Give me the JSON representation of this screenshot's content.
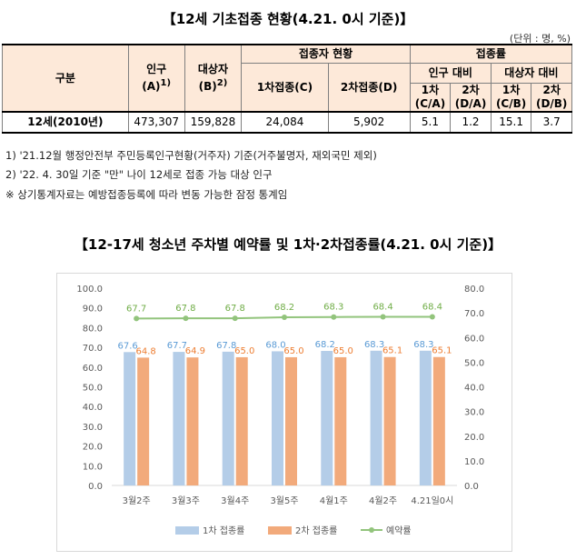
{
  "table": {
    "title": "【12세 기초접종 현황(4.21. 0시 기준)】",
    "unit": "(단위 : 명, %)",
    "headers": {
      "category": "구분",
      "population": "인구",
      "population_sub": "(A)",
      "population_sup": "1)",
      "target": "대상자",
      "target_sub": "(B)",
      "target_sup": "2)",
      "vaccinated_group": "접종자 현황",
      "dose1": "1차접종(C)",
      "dose2": "2차접종(D)",
      "rate_group": "접종률",
      "vs_population": "인구 대비",
      "vs_target": "대상자 대비",
      "c_a_1": "1차",
      "c_a_2": "(C/A)",
      "d_a_1": "2차",
      "d_a_2": "(D/A)",
      "c_b_1": "1차",
      "c_b_2": "(C/B)",
      "d_b_1": "2차",
      "d_b_2": "(D/B)"
    },
    "row": {
      "label": "12세(2010년)",
      "population": "473,307",
      "target": "159,828",
      "dose1": "24,084",
      "dose2": "5,902",
      "c_a": "5.1",
      "d_a": "1.2",
      "c_b": "15.1",
      "d_b": "3.7"
    }
  },
  "notes": [
    "1) '21.12월 행정안전부 주민등록인구현황(거주자) 기준(거주불명자, 재외국민 제외)",
    "2) '22. 4. 30일 기준 \"만\" 나이 12세로 접종 가능 대상 인구",
    "※ 상기통계자료는 예방접종등록에 따라 변동 가능한 잠정 통계임"
  ],
  "chart_title": "【12-17세 청소년 주차별 예약률 및 1차·2차접종률(4.21. 0시 기준)】",
  "colors": {
    "dose1": "#b4cde8",
    "dose2": "#f2aa7b",
    "reservation": "#92c47c",
    "dose1_label": "#5b9bd5",
    "dose2_label": "#ed7d31",
    "reservation_label": "#70ad47",
    "header_fill": "#fde9d9"
  },
  "chart_data": {
    "type": "bar",
    "categories": [
      "3월2주",
      "3월3주",
      "3월4주",
      "3월5주",
      "4월1주",
      "4월2주",
      "4.21일0시"
    ],
    "series": [
      {
        "name": "1차 접종률",
        "type": "bar",
        "axis": "left",
        "values": [
          67.6,
          67.7,
          67.8,
          68.0,
          68.2,
          68.3,
          68.3
        ]
      },
      {
        "name": "2차 접종률",
        "type": "bar",
        "axis": "left",
        "values": [
          64.8,
          64.9,
          65.0,
          65.0,
          65.0,
          65.1,
          65.1
        ]
      },
      {
        "name": "예약률",
        "type": "line",
        "axis": "right",
        "values": [
          67.7,
          67.8,
          67.8,
          68.2,
          68.3,
          68.4,
          68.4
        ]
      }
    ],
    "y_left": {
      "min": 0,
      "max": 100,
      "step": 10,
      "ticks": [
        "0.0",
        "10.0",
        "20.0",
        "30.0",
        "40.0",
        "50.0",
        "60.0",
        "70.0",
        "80.0",
        "90.0",
        "100.0"
      ]
    },
    "y_right": {
      "min": 0,
      "max": 80,
      "step": 10,
      "ticks": [
        "0.0",
        "10.0",
        "20.0",
        "30.0",
        "40.0",
        "50.0",
        "60.0",
        "70.0",
        "80.0"
      ]
    },
    "grid": false,
    "legend": "bottom"
  }
}
